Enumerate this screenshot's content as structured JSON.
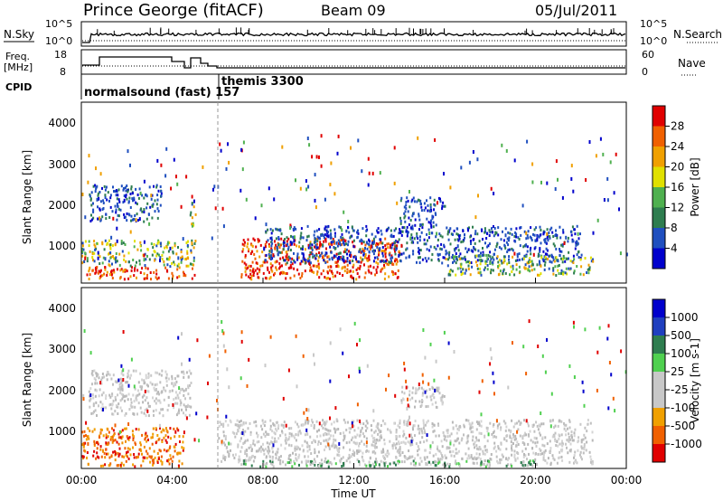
{
  "header": {
    "station": "Prince George (fitACF)",
    "beam": "Beam 09",
    "date": "05/Jul/2011"
  },
  "top_panels": {
    "nsky_label": "N.Sky",
    "nsky_ticks": [
      "10^5",
      "10^0"
    ],
    "nsearch_label": "N.Search",
    "nsearch_ticks": [
      "10^5",
      "10^0"
    ],
    "freq_label_1": "Freq.",
    "freq_label_2": "[MHz]",
    "freq_ticks": [
      "18",
      "8"
    ],
    "nave_label": "Nave",
    "nave_ticks": [
      "60",
      "0"
    ],
    "cpid_label": "CPID",
    "cpid_modes": [
      "normalsound (fast) 157",
      "themis 3300"
    ]
  },
  "chart_data": [
    {
      "type": "heatmap",
      "name": "power",
      "ylabel": "Slant Range [km]",
      "yticks": [
        "4000",
        "3000",
        "2000",
        "1000"
      ],
      "ylim": [
        180,
        4600
      ],
      "xlim_hours": [
        0,
        24
      ],
      "colorbar_label": "Power [dB]",
      "colorbar_ticks": [
        "28",
        "24",
        "20",
        "16",
        "12",
        "8",
        "4"
      ],
      "colorbar_colors": [
        "#0000cc",
        "#1f4fbf",
        "#2e7d4f",
        "#4fb04f",
        "#e0e000",
        "#f0a000",
        "#f06000",
        "#e00000"
      ],
      "bands": [
        {
          "h0": 0.2,
          "h1": 5.0,
          "r0": 300,
          "r1": 600,
          "level": "high"
        },
        {
          "h0": 0.0,
          "h1": 5.0,
          "r0": 600,
          "r1": 1250,
          "level": "mid"
        },
        {
          "h0": 0.3,
          "h1": 3.5,
          "r0": 1700,
          "r1": 2600,
          "level": "low"
        },
        {
          "h0": 4.7,
          "h1": 5.0,
          "r0": 1600,
          "r1": 2200,
          "level": "mid"
        },
        {
          "h0": 7.0,
          "h1": 14.0,
          "r0": 300,
          "r1": 1300,
          "level": "high"
        },
        {
          "h0": 8.0,
          "h1": 22.0,
          "r0": 700,
          "r1": 1600,
          "level": "low"
        },
        {
          "h0": 14.0,
          "h1": 16.0,
          "r0": 1600,
          "r1": 2300,
          "level": "low"
        },
        {
          "h0": 16.0,
          "h1": 22.5,
          "r0": 400,
          "r1": 900,
          "level": "mid"
        }
      ]
    },
    {
      "type": "heatmap",
      "name": "velocity",
      "ylabel": "Slant Range [km]",
      "yticks": [
        "4000",
        "3000",
        "2000",
        "1000"
      ],
      "ylim": [
        180,
        4600
      ],
      "xlim_hours": [
        0,
        24
      ],
      "colorbar_label": "Velocity [m s-1]",
      "colorbar_ticks": [
        "1000",
        "500",
        "100",
        "25",
        "-25",
        "-100",
        "-500",
        "-1000"
      ],
      "colorbar_colors": [
        "#e00000",
        "#f06000",
        "#f0a000",
        "#c8c8c8",
        "#c8c8c8",
        "#4fd04f",
        "#2e7d4f",
        "#1f3fbf",
        "#0000cc"
      ],
      "bands": [
        {
          "h0": 0.0,
          "h1": 4.5,
          "r0": 250,
          "r1": 1200,
          "level": "orange"
        },
        {
          "h0": 0.3,
          "h1": 4.8,
          "r0": 1500,
          "r1": 2600,
          "level": "gray"
        },
        {
          "h0": 6.0,
          "h1": 22.5,
          "r0": 300,
          "r1": 1400,
          "level": "gray"
        },
        {
          "h0": 14.0,
          "h1": 16.0,
          "r0": 1700,
          "r1": 2200,
          "level": "gray"
        },
        {
          "h0": 7.0,
          "h1": 20.0,
          "r0": 250,
          "r1": 400,
          "level": "green"
        }
      ]
    }
  ],
  "x_axis": {
    "ticks": [
      "00:00",
      "04:00",
      "08:00",
      "12:00",
      "16:00",
      "20:00",
      "00:00"
    ],
    "label": "Time UT"
  }
}
